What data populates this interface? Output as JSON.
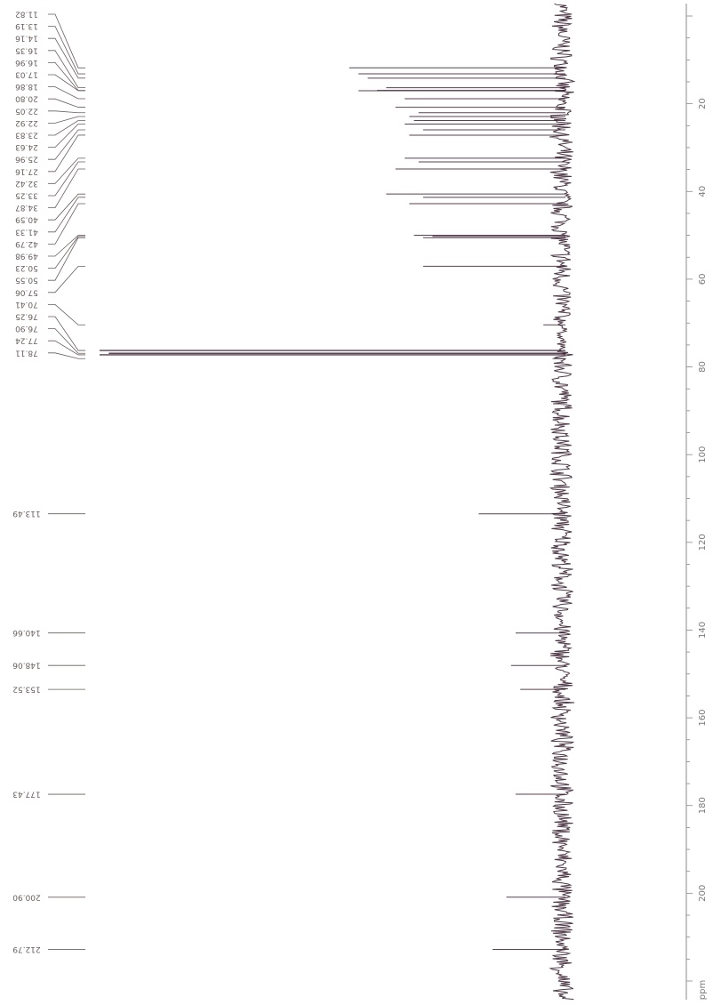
{
  "chart_data": {
    "type": "line",
    "title": "",
    "xlabel": "ppm",
    "ylabel": "",
    "orientation": "rotated-90",
    "x_axis_range": [
      0,
      220
    ],
    "x_axis_reversed": false,
    "x_ticks": [
      "20",
      "40",
      "60",
      "80",
      "100",
      "120",
      "140",
      "160",
      "180",
      "200",
      "ppm"
    ],
    "peak_labels": [
      "11.82",
      "13.19",
      "14.16",
      "16.35",
      "16.96",
      "17.03",
      "18.86",
      "20.80",
      "22.05",
      "22.92",
      "23.83",
      "24.63",
      "25.96",
      "27.16",
      "32.42",
      "33.25",
      "34.87",
      "40.59",
      "41.33",
      "42.79",
      "49.98",
      "50.23",
      "50.55",
      "57.06",
      "70.41",
      "76.25",
      "76.90",
      "77.24",
      "78.11",
      "113.49",
      "140.66",
      "148.06",
      "153.52",
      "177.43",
      "200.90",
      "212.79"
    ],
    "peaks": [
      {
        "ppm": 11.82,
        "intensity": 0.46
      },
      {
        "ppm": 13.19,
        "intensity": 0.44
      },
      {
        "ppm": 14.16,
        "intensity": 0.42
      },
      {
        "ppm": 16.35,
        "intensity": 0.38
      },
      {
        "ppm": 16.96,
        "intensity": 0.4
      },
      {
        "ppm": 17.03,
        "intensity": 0.44
      },
      {
        "ppm": 18.86,
        "intensity": 0.34
      },
      {
        "ppm": 20.8,
        "intensity": 0.36
      },
      {
        "ppm": 22.05,
        "intensity": 0.31
      },
      {
        "ppm": 22.92,
        "intensity": 0.33
      },
      {
        "ppm": 23.83,
        "intensity": 0.32
      },
      {
        "ppm": 24.63,
        "intensity": 0.34
      },
      {
        "ppm": 25.96,
        "intensity": 0.3
      },
      {
        "ppm": 27.16,
        "intensity": 0.33
      },
      {
        "ppm": 32.42,
        "intensity": 0.34
      },
      {
        "ppm": 33.25,
        "intensity": 0.31
      },
      {
        "ppm": 34.87,
        "intensity": 0.36
      },
      {
        "ppm": 40.59,
        "intensity": 0.38
      },
      {
        "ppm": 41.33,
        "intensity": 0.3
      },
      {
        "ppm": 42.79,
        "intensity": 0.33
      },
      {
        "ppm": 49.98,
        "intensity": 0.32
      },
      {
        "ppm": 50.23,
        "intensity": 0.28
      },
      {
        "ppm": 50.55,
        "intensity": 0.3
      },
      {
        "ppm": 57.06,
        "intensity": 0.3
      },
      {
        "ppm": 70.41,
        "intensity": 0.04
      },
      {
        "ppm": 76.25,
        "intensity": 1.0
      },
      {
        "ppm": 76.9,
        "intensity": 0.98
      },
      {
        "ppm": 77.24,
        "intensity": 1.0
      },
      {
        "ppm": 78.11,
        "intensity": 0.02
      },
      {
        "ppm": 113.49,
        "intensity": 0.18
      },
      {
        "ppm": 140.66,
        "intensity": 0.1
      },
      {
        "ppm": 148.06,
        "intensity": 0.11
      },
      {
        "ppm": 153.52,
        "intensity": 0.09
      },
      {
        "ppm": 177.43,
        "intensity": 0.1
      },
      {
        "ppm": 200.9,
        "intensity": 0.12
      },
      {
        "ppm": 212.79,
        "intensity": 0.15
      }
    ],
    "colors": {
      "trace": "#3a2232",
      "labels": "#6a5f5f",
      "axis": "#8a8a8a",
      "ticks_text": "#7a7a7a"
    },
    "grid": false,
    "legend": "none"
  }
}
